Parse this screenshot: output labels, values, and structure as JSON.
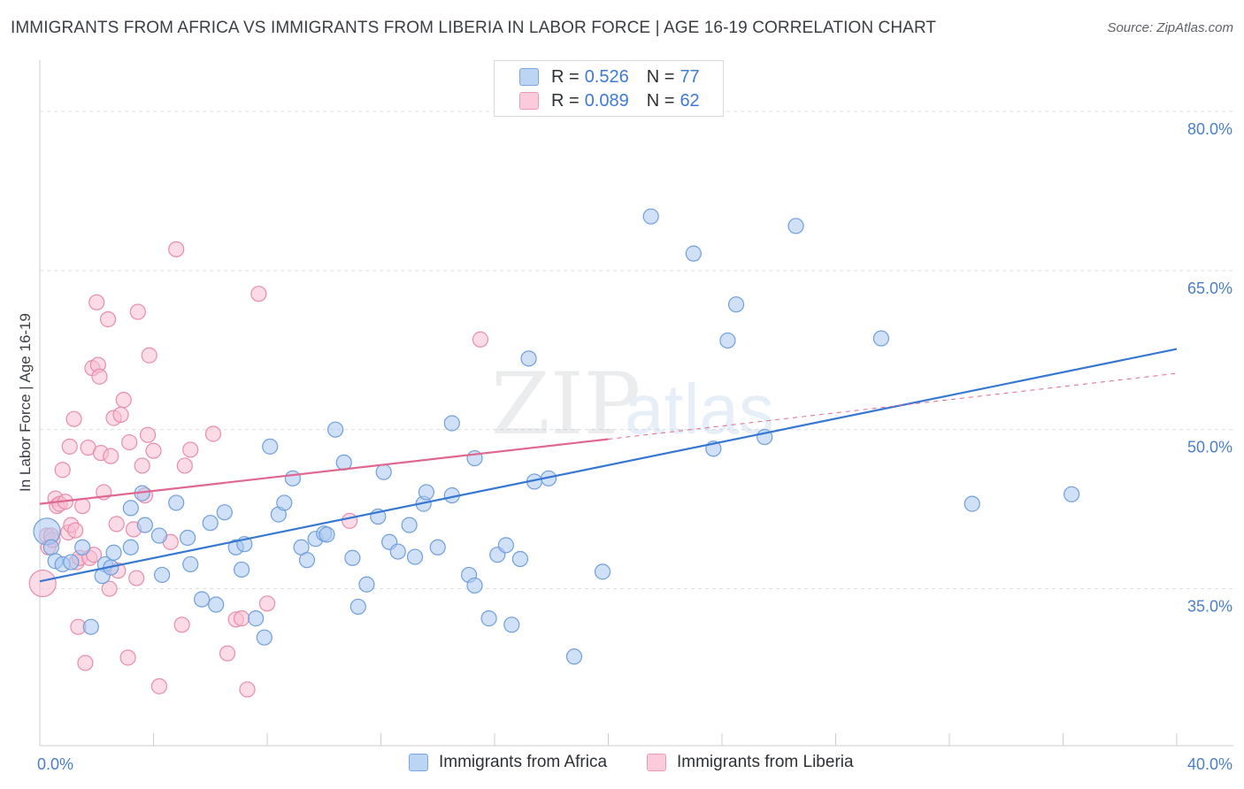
{
  "title": "IMMIGRANTS FROM AFRICA VS IMMIGRANTS FROM LIBERIA IN LABOR FORCE | AGE 16-19 CORRELATION CHART",
  "source": "Source: ZipAtlas.com",
  "watermark": {
    "zip": "ZIP",
    "atlas": "atlas"
  },
  "colors": {
    "africa_fill": "#a9c8f1",
    "africa_stroke": "#6f9fdc",
    "africa_line": "#3577d2",
    "liberia_fill": "#f8bdd0",
    "liberia_stroke": "#e98cab",
    "liberia_line": "#e0688f",
    "grid": "#dcdfe3",
    "axis_text": "#4a7fcb"
  },
  "legend": {
    "africa": {
      "r_label": "R = ",
      "r_value": "0.526",
      "n_label": "N = ",
      "n_value": "77"
    },
    "liberia": {
      "r_label": "R = ",
      "r_value": "0.089",
      "n_label": "N = ",
      "n_value": "62"
    }
  },
  "chart_data": {
    "type": "scatter",
    "title": "IMMIGRANTS FROM AFRICA VS IMMIGRANTS FROM LIBERIA IN LABOR FORCE | AGE 16-19 CORRELATION CHART",
    "xlabel": "",
    "ylabel": "In Labor Force | Age 16-19",
    "xlim": [
      0,
      40
    ],
    "ylim": [
      20.2,
      84
    ],
    "x_ticks": [
      {
        "value": 0,
        "label": "0.0%"
      },
      {
        "value": 40,
        "label": "40.0%"
      }
    ],
    "y_ticks": [
      {
        "value": 35,
        "label": "35.0%"
      },
      {
        "value": 50,
        "label": "50.0%"
      },
      {
        "value": 65,
        "label": "65.0%"
      },
      {
        "value": 80,
        "label": "80.0%"
      }
    ],
    "legend_position": "top-center",
    "series": [
      {
        "name": "Immigrants from Africa",
        "r": 0.526,
        "n": 77,
        "trend": {
          "x0": 0,
          "y0": 35.7,
          "x1": 40,
          "y1": 57.6
        },
        "points": [
          [
            0.25,
            40.4
          ],
          [
            0.4,
            38.9
          ],
          [
            0.55,
            37.6
          ],
          [
            0.8,
            37.3
          ],
          [
            1.5,
            38.9
          ],
          [
            2.3,
            37.3
          ],
          [
            2.6,
            38.4
          ],
          [
            2.2,
            36.2
          ],
          [
            2.5,
            37.0
          ],
          [
            1.8,
            31.4
          ],
          [
            3.2,
            42.6
          ],
          [
            3.7,
            41.0
          ],
          [
            3.6,
            44.0
          ],
          [
            3.2,
            38.9
          ],
          [
            4.2,
            40.0
          ],
          [
            4.3,
            36.3
          ],
          [
            4.8,
            43.1
          ],
          [
            5.2,
            39.8
          ],
          [
            5.3,
            37.3
          ],
          [
            5.7,
            34.0
          ],
          [
            6.0,
            41.2
          ],
          [
            6.2,
            33.5
          ],
          [
            6.5,
            42.2
          ],
          [
            6.9,
            38.9
          ],
          [
            7.1,
            36.8
          ],
          [
            7.2,
            39.2
          ],
          [
            7.6,
            32.2
          ],
          [
            7.9,
            30.4
          ],
          [
            8.1,
            48.4
          ],
          [
            8.4,
            42.0
          ],
          [
            8.6,
            43.1
          ],
          [
            8.9,
            45.4
          ],
          [
            9.2,
            38.9
          ],
          [
            9.4,
            37.7
          ],
          [
            9.7,
            39.7
          ],
          [
            10.0,
            40.2
          ],
          [
            10.1,
            40.1
          ],
          [
            10.4,
            50.0
          ],
          [
            10.7,
            46.9
          ],
          [
            11.0,
            37.9
          ],
          [
            11.2,
            33.3
          ],
          [
            11.5,
            35.4
          ],
          [
            11.9,
            41.8
          ],
          [
            12.1,
            46.0
          ],
          [
            12.3,
            39.4
          ],
          [
            12.6,
            38.5
          ],
          [
            13.0,
            41.0
          ],
          [
            13.2,
            38.0
          ],
          [
            13.5,
            43.0
          ],
          [
            13.6,
            44.1
          ],
          [
            14.0,
            38.9
          ],
          [
            14.5,
            50.6
          ],
          [
            14.5,
            43.8
          ],
          [
            15.1,
            36.3
          ],
          [
            15.3,
            35.3
          ],
          [
            15.3,
            47.3
          ],
          [
            15.8,
            32.2
          ],
          [
            16.1,
            38.2
          ],
          [
            16.4,
            39.1
          ],
          [
            16.6,
            31.6
          ],
          [
            16.9,
            37.8
          ],
          [
            17.2,
            56.7
          ],
          [
            17.4,
            45.1
          ],
          [
            17.9,
            45.4
          ],
          [
            18.8,
            28.6
          ],
          [
            19.8,
            36.6
          ],
          [
            21.5,
            70.1
          ],
          [
            23.0,
            66.6
          ],
          [
            23.7,
            48.2
          ],
          [
            24.2,
            58.4
          ],
          [
            24.5,
            61.8
          ],
          [
            25.5,
            49.3
          ],
          [
            26.6,
            69.2
          ],
          [
            29.6,
            58.6
          ],
          [
            32.8,
            43.0
          ],
          [
            36.3,
            43.9
          ],
          [
            1.1,
            37.5
          ]
        ]
      },
      {
        "name": "Immigrants from Liberia",
        "r": 0.089,
        "n": 62,
        "trend_solid": {
          "x0": 0,
          "y0": 43.0,
          "x1": 20.0,
          "y1": 49.1
        },
        "trend_dashed": {
          "x0": 20.0,
          "y0": 49.1,
          "x1": 40,
          "y1": 55.3
        },
        "points": [
          [
            0.1,
            35.5
          ],
          [
            0.25,
            40.0
          ],
          [
            0.3,
            38.9
          ],
          [
            0.45,
            39.6
          ],
          [
            0.55,
            43.5
          ],
          [
            0.6,
            42.8
          ],
          [
            0.7,
            43.0
          ],
          [
            0.8,
            46.2
          ],
          [
            0.9,
            43.2
          ],
          [
            1.0,
            40.3
          ],
          [
            1.05,
            48.4
          ],
          [
            1.1,
            41.0
          ],
          [
            1.2,
            51.0
          ],
          [
            1.25,
            40.5
          ],
          [
            1.3,
            37.5
          ],
          [
            1.35,
            31.4
          ],
          [
            1.4,
            37.9
          ],
          [
            1.5,
            42.8
          ],
          [
            1.6,
            28.0
          ],
          [
            1.7,
            48.3
          ],
          [
            1.75,
            37.9
          ],
          [
            1.85,
            55.8
          ],
          [
            1.9,
            38.2
          ],
          [
            2.0,
            62.0
          ],
          [
            2.05,
            56.1
          ],
          [
            2.1,
            55.0
          ],
          [
            2.15,
            47.8
          ],
          [
            2.25,
            44.1
          ],
          [
            2.4,
            60.4
          ],
          [
            2.45,
            35.0
          ],
          [
            2.5,
            47.5
          ],
          [
            2.6,
            51.1
          ],
          [
            2.7,
            41.1
          ],
          [
            2.75,
            36.7
          ],
          [
            2.85,
            51.4
          ],
          [
            2.95,
            52.8
          ],
          [
            3.1,
            28.5
          ],
          [
            3.15,
            48.8
          ],
          [
            3.3,
            40.6
          ],
          [
            3.4,
            36.0
          ],
          [
            3.45,
            61.1
          ],
          [
            3.6,
            46.6
          ],
          [
            3.7,
            43.8
          ],
          [
            3.8,
            49.5
          ],
          [
            3.85,
            57.0
          ],
          [
            4.0,
            48.0
          ],
          [
            4.2,
            25.8
          ],
          [
            4.6,
            39.4
          ],
          [
            4.8,
            67.0
          ],
          [
            5.0,
            31.6
          ],
          [
            5.1,
            46.6
          ],
          [
            5.3,
            48.1
          ],
          [
            6.1,
            49.6
          ],
          [
            6.6,
            28.9
          ],
          [
            6.9,
            32.1
          ],
          [
            7.1,
            32.2
          ],
          [
            7.3,
            25.5
          ],
          [
            7.7,
            62.8
          ],
          [
            8.0,
            33.6
          ],
          [
            10.9,
            41.4
          ],
          [
            15.5,
            58.5
          ],
          [
            0.4,
            40.0
          ]
        ]
      }
    ]
  },
  "bottom_legend": {
    "africa": "Immigrants from Africa",
    "liberia": "Immigrants from Liberia"
  }
}
